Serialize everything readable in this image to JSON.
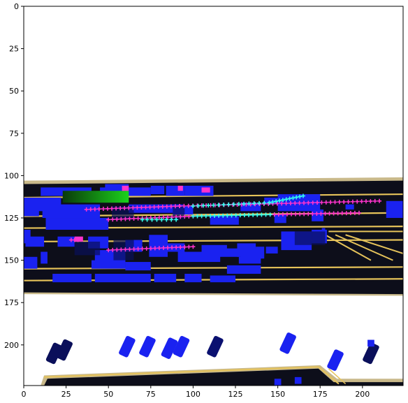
{
  "figure": {
    "kind": "raster image plot (top-down driving scene)",
    "x_ticks": [
      0,
      25,
      50,
      75,
      100,
      125,
      150,
      175,
      200
    ],
    "y_ticks": [
      0,
      25,
      50,
      75,
      100,
      125,
      150,
      175,
      200
    ],
    "x_range": [
      0,
      224
    ],
    "y_range": [
      224,
      0
    ],
    "colors": {
      "road": "#0d0e1a",
      "lane_line": "#e6c35a",
      "road_edge": "#c9b98a",
      "vehicle": "#1a22f0",
      "vehicle_dark": "#0a0f5a",
      "ego": "#1bd21b",
      "trajectory_magenta": "#ff33cc",
      "trajectory_cyan": "#33ffee"
    }
  }
}
